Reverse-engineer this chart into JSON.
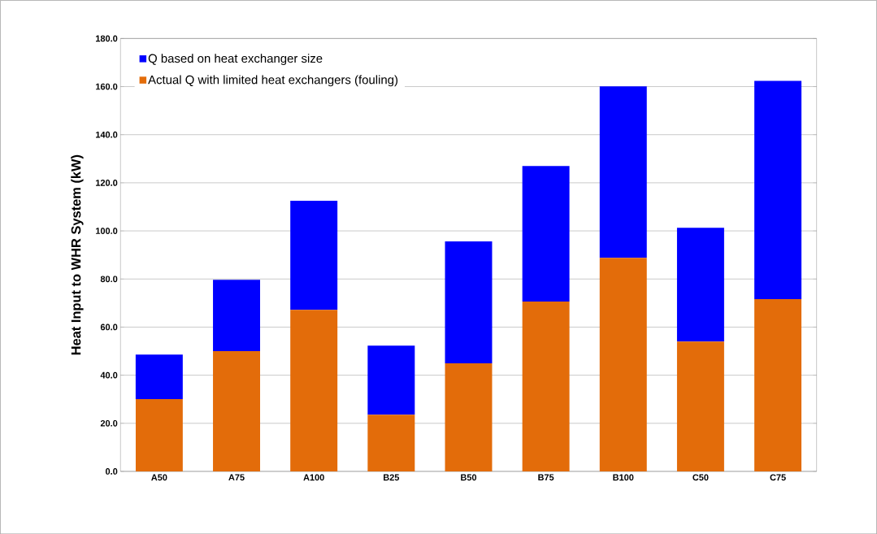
{
  "chart_data": {
    "type": "bar",
    "stacked": true,
    "ylabel": "Heat Input to WHR System (kW)",
    "categories": [
      "A50",
      "A75",
      "A100",
      "B25",
      "B50",
      "B75",
      "B100",
      "C50",
      "C75"
    ],
    "series": [
      {
        "name": "Actual Q with limited heat exchangers (fouling)",
        "color": "#e36c0a",
        "values": [
          30.1,
          50.0,
          67.2,
          23.6,
          44.9,
          70.6,
          88.8,
          54.0,
          71.6
        ]
      },
      {
        "name": "Q based on heat exchanger size",
        "color": "#0000ff",
        "values": [
          18.5,
          29.7,
          45.3,
          28.7,
          50.7,
          56.4,
          71.3,
          47.3,
          90.8
        ]
      }
    ],
    "ylim": [
      0,
      180
    ],
    "yticks": [
      {
        "value": 0,
        "label": "0.0"
      },
      {
        "value": 20,
        "label": "20.0"
      },
      {
        "value": 40,
        "label": "40.0"
      },
      {
        "value": 60,
        "label": "60.0"
      },
      {
        "value": 80,
        "label": "80.0"
      },
      {
        "value": 100,
        "label": "100.0"
      },
      {
        "value": 120,
        "label": "120.0"
      },
      {
        "value": 140,
        "label": "140.0"
      },
      {
        "value": 160,
        "label": "160.0"
      },
      {
        "value": 180,
        "label": "180.0"
      }
    ],
    "grid": "y",
    "legend": "top left"
  }
}
